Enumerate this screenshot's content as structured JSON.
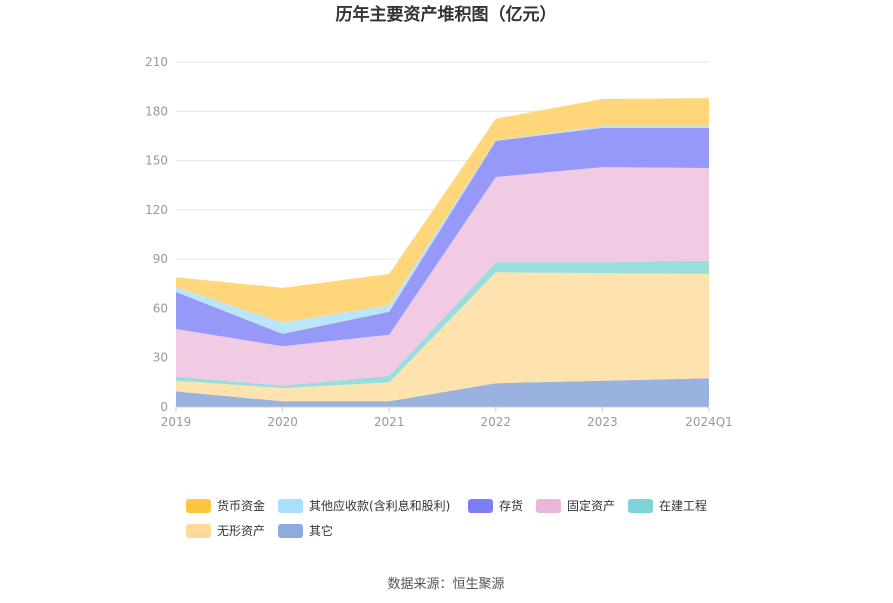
{
  "chart_data": {
    "type": "area",
    "stacked": true,
    "title": "历年主要资产堆积图（亿元）",
    "categories": [
      "2019",
      "2020",
      "2021",
      "2022",
      "2023",
      "2024Q1"
    ],
    "ylim": [
      0,
      210
    ],
    "yticks": [
      0,
      30,
      60,
      90,
      120,
      150,
      180,
      210
    ],
    "grid": true,
    "legend_position": "bottom",
    "series": [
      {
        "name": "其它",
        "color": "#8faadc",
        "values": [
          9.5,
          3.5,
          3.5,
          14.5,
          16.0,
          17.5
        ]
      },
      {
        "name": "无形资产",
        "color": "#ffe0a6",
        "values": [
          6.5,
          8.0,
          11.5,
          67.5,
          65.5,
          63.5
        ]
      },
      {
        "name": "在建工程",
        "color": "#8fd9d9",
        "values": [
          2.5,
          1.5,
          4.0,
          6.0,
          6.5,
          8.0
        ]
      },
      {
        "name": "固定资产",
        "color": "#eec5e0",
        "values": [
          29.0,
          24.0,
          25.0,
          52.0,
          58.0,
          56.5
        ]
      },
      {
        "name": "存货",
        "color": "#8c8ef7",
        "values": [
          22.5,
          7.5,
          14.0,
          22.0,
          24.0,
          24.5
        ]
      },
      {
        "name": "其他应收款(含利息和股利)",
        "color": "#b3e3f7",
        "values": [
          3.0,
          7.0,
          4.0,
          0.5,
          1.0,
          1.0
        ]
      },
      {
        "name": "货币资金",
        "color": "#ffd36b",
        "values": [
          6.0,
          21.0,
          19.0,
          13.0,
          16.5,
          17.0
        ]
      }
    ],
    "legend_order": [
      "货币资金",
      "其他应收款(含利息和股利)",
      "存货",
      "固定资产",
      "在建工程",
      "无形资产",
      "其它"
    ],
    "legend_colors": {
      "货币资金": "#ffc53d",
      "其他应收款(含利息和股利)": "#a8e0fa",
      "存货": "#7b7ff7",
      "固定资产": "#eab5d8",
      "在建工程": "#7dd3d6",
      "无形资产": "#ffd89a",
      "其它": "#8faadc"
    },
    "source": "数据来源：恒生聚源"
  }
}
